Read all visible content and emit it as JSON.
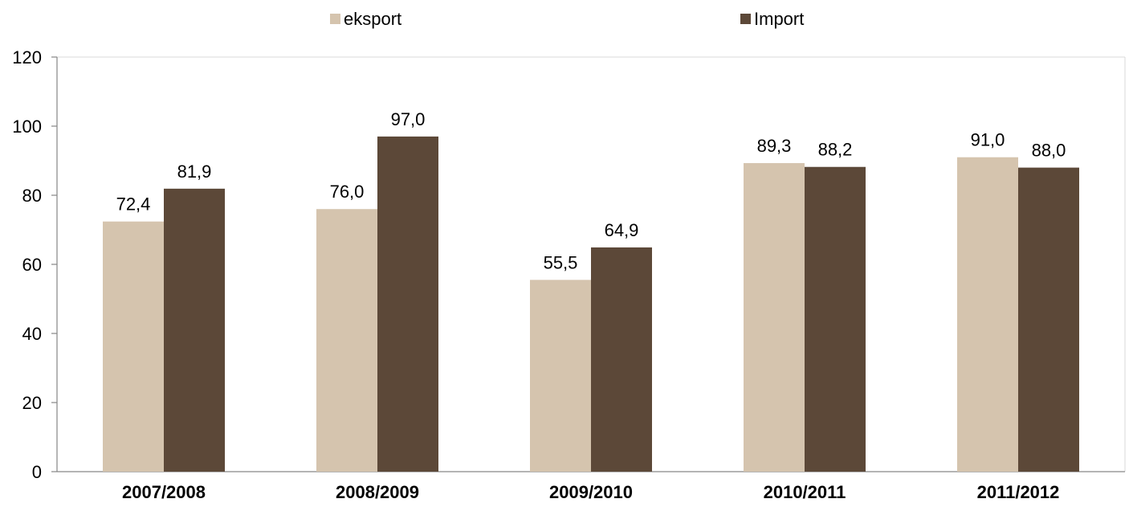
{
  "chart_data": {
    "type": "bar",
    "categories": [
      "2007/2008",
      "2008/2009",
      "2009/2010",
      "2010/2011",
      "2011/2012"
    ],
    "series": [
      {
        "name": "eksport",
        "values": [
          72.4,
          76.0,
          55.5,
          89.3,
          91.0
        ],
        "labels": [
          "72,4",
          "76,0",
          "55,5",
          "89,3",
          "91,0"
        ],
        "color": "#d5c4ae"
      },
      {
        "name": "Import",
        "values": [
          81.9,
          97.0,
          64.9,
          88.2,
          88.0
        ],
        "labels": [
          "81,9",
          "97,0",
          "64,9",
          "88,2",
          "88,0"
        ],
        "color": "#5c4838"
      }
    ],
    "ylim": [
      0,
      120
    ],
    "yticks": [
      0,
      20,
      40,
      60,
      80,
      100,
      120
    ],
    "ytick_labels": [
      "0",
      "20",
      "40",
      "60",
      "80",
      "100",
      "120"
    ],
    "legend": "top",
    "grid": false,
    "title": "",
    "xlabel": "",
    "ylabel": ""
  },
  "colors": {
    "axis": "#868686",
    "frame": "#d9d9d9"
  }
}
